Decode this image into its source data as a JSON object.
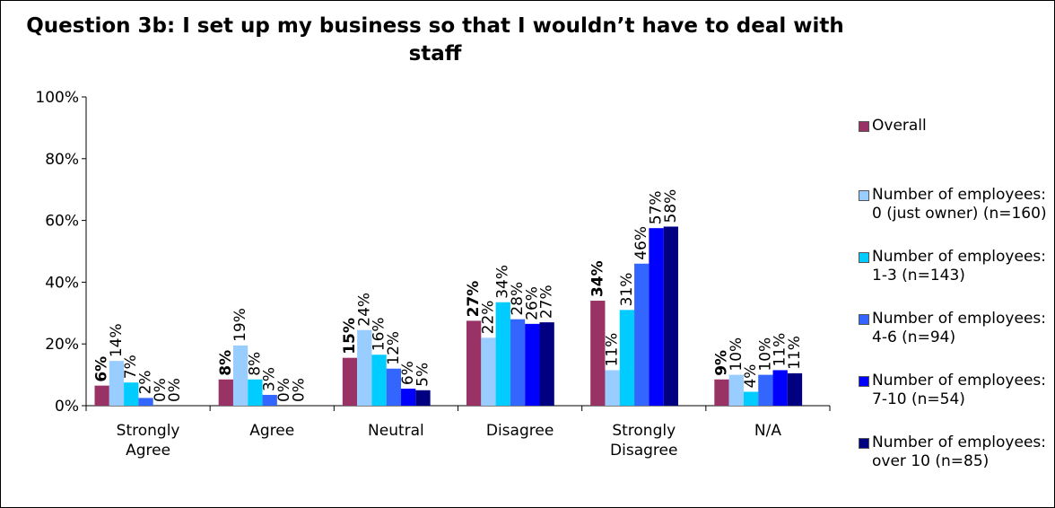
{
  "chart_data": {
    "type": "bar",
    "title": "Question 3b:  I set up my business so that I wouldn’t have to deal with staff",
    "ylim": [
      0,
      100
    ],
    "yticks": [
      "0%",
      "20%",
      "40%",
      "60%",
      "80%",
      "100%"
    ],
    "ytick_values": [
      0,
      20,
      40,
      60,
      80,
      100
    ],
    "grid": false,
    "legend_position": "right",
    "categories": [
      "Strongly Agree",
      "Agree",
      "Neutral",
      "Disagree",
      "Strongly Disagree",
      "N/A"
    ],
    "series": [
      {
        "name": "Overall",
        "color": "#993366",
        "values": [
          6,
          8,
          15,
          27,
          34,
          9
        ],
        "labels": [
          "6%",
          "8%",
          "15%",
          "27%",
          "34%",
          "9%"
        ],
        "bold_labels": true,
        "plotted_values": [
          6.5,
          8.5,
          15.5,
          27.5,
          34,
          8.5
        ]
      },
      {
        "name": "Number of employees: 0 (just owner) (n=160)",
        "color": "#99ccff",
        "values": [
          14,
          19,
          24,
          22,
          11,
          10
        ],
        "labels": [
          "14%",
          "19%",
          "24%",
          "22%",
          "11%",
          "10%"
        ],
        "plotted_values": [
          14.5,
          19.5,
          24.5,
          22,
          11.5,
          10
        ]
      },
      {
        "name": "Number of employees: 1-3 (n=143)",
        "color": "#00ccff",
        "values": [
          7,
          8,
          16,
          34,
          31,
          4
        ],
        "labels": [
          "7%",
          "8%",
          "16%",
          "34%",
          "31%",
          "4%"
        ],
        "plotted_values": [
          7.5,
          8.5,
          16.5,
          33.5,
          31,
          4.5
        ]
      },
      {
        "name": "Number of employees: 4-6 (n=94)",
        "color": "#3366ff",
        "values": [
          2,
          3,
          12,
          28,
          46,
          10
        ],
        "labels": [
          "2%",
          "3%",
          "12%",
          "28%",
          "46%",
          "10%"
        ],
        "plotted_values": [
          2.5,
          3.5,
          12,
          28,
          46,
          10
        ]
      },
      {
        "name": "Number of employees: 7-10 (n=54)",
        "color": "#0000ff",
        "values": [
          0,
          0,
          6,
          26,
          57,
          11
        ],
        "labels": [
          "0%",
          "0%",
          "6%",
          "26%",
          "57%",
          "11%"
        ],
        "plotted_values": [
          0,
          0,
          5.5,
          26.5,
          57.5,
          11.5
        ]
      },
      {
        "name": "Number of employees: over 10 (n=85)",
        "color": "#000080",
        "values": [
          0,
          0,
          5,
          27,
          58,
          11
        ],
        "labels": [
          "0%",
          "0%",
          "5%",
          "27%",
          "58%",
          "11%"
        ],
        "plotted_values": [
          0,
          0,
          5,
          27,
          58,
          10.5
        ]
      }
    ]
  }
}
